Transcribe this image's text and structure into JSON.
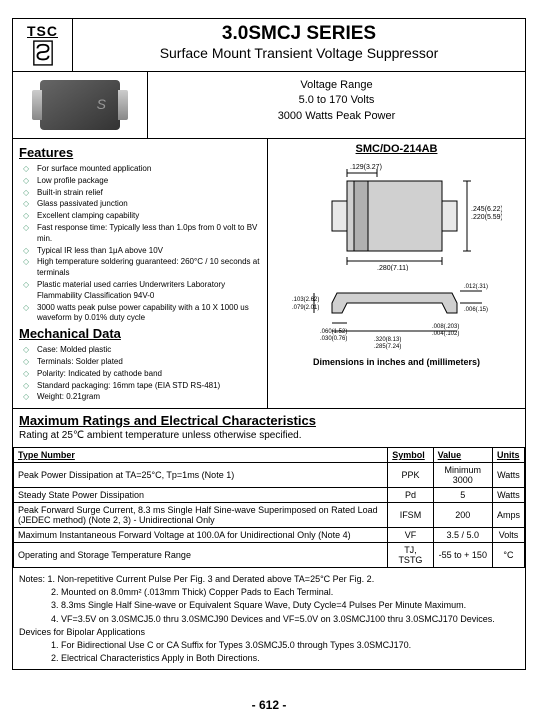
{
  "logo_text": "TSC",
  "title": "3.0SMCJ SERIES",
  "subtitle": "Surface Mount Transient Voltage Suppressor",
  "voltage_block": {
    "l1": "Voltage Range",
    "l2": "5.0 to 170 Volts",
    "l3": "3000 Watts Peak Power"
  },
  "package_name": "SMC/DO-214AB",
  "features_heading": "Features",
  "features": [
    "For surface mounted application",
    "Low profile package",
    "Built-in strain relief",
    "Glass passivated junction",
    "Excellent clamping capability",
    "Fast response time: Typically less than 1.0ps from 0 volt to BV min.",
    "Typical IR less than 1μA above 10V",
    "High temperature soldering guaranteed: 260°C / 10 seconds at terminals",
    "Plastic material used carries Underwriters Laboratory Flammability Classification 94V-0",
    "3000 watts peak pulse power capability with a 10 X 1000 us waveform by 0.01% duty cycle"
  ],
  "mech_heading": "Mechanical Data",
  "mech": [
    "Case: Molded plastic",
    "Terminals: Solder plated",
    "Polarity: Indicated by cathode band",
    "Standard packaging: 16mm tape (EIA STD RS-481)",
    "Weight: 0.21gram"
  ],
  "dim_note": "Dimensions in inches and (millimeters)",
  "dims": {
    "w_top": ".129(3.27)",
    "body_w": ".280(7.11)",
    "h": ".245(6.22) .220(5.59)",
    "lead_t": ".012(.31) .006(.15)",
    "lead_w": ".060(1.52) .030(0.76)",
    "lead_h": ".103(2.62) .079(2.01)",
    "overall": ".320(8.13) .285(7.24)",
    "pitch": ".008(.203) .004(.102)"
  },
  "max_heading": "Maximum Ratings and Electrical Characteristics",
  "max_sub": "Rating at 25℃ ambient temperature unless otherwise specified.",
  "table_headers": [
    "Type Number",
    "Symbol",
    "Value",
    "Units"
  ],
  "table_rows": [
    [
      "Peak Power Dissipation at TA=25°C, Tp=1ms (Note 1)",
      "PPK",
      "Minimum 3000",
      "Watts"
    ],
    [
      "Steady State Power Dissipation",
      "Pd",
      "5",
      "Watts"
    ],
    [
      "Peak Forward Surge Current, 8.3 ms Single Half Sine-wave Superimposed on Rated Load (JEDEC method) (Note 2, 3) - Unidirectional Only",
      "IFSM",
      "200",
      "Amps"
    ],
    [
      "Maximum Instantaneous Forward Voltage at 100.0A for Unidirectional Only (Note 4)",
      "VF",
      "3.5 / 5.0",
      "Volts"
    ],
    [
      "Operating and Storage Temperature Range",
      "TJ, TSTG",
      "-55 to + 150",
      "°C"
    ]
  ],
  "notes_lines": [
    "Notes: 1. Non-repetitive Current Pulse Per Fig. 3 and Derated above TA=25°C Per Fig. 2.",
    "2. Mounted on 8.0mm² (.013mm Thick) Copper Pads to Each Terminal.",
    "3. 8.3ms Single Half Sine-wave or Equivalent Square Wave, Duty Cycle=4 Pulses Per Minute Maximum.",
    "4. VF=3.5V on 3.0SMCJ5.0 thru 3.0SMCJ90 Devices and VF=5.0V on 3.0SMCJ100 thru 3.0SMCJ170 Devices."
  ],
  "bipolar_h": "Devices for Bipolar Applications",
  "bipolar_lines": [
    "1. For Bidirectional Use C or CA Suffix for Types 3.0SMCJ5.0 through Types 3.0SMCJ170.",
    "2. Electrical Characteristics Apply in Both Directions."
  ],
  "page_number": "- 612 -"
}
